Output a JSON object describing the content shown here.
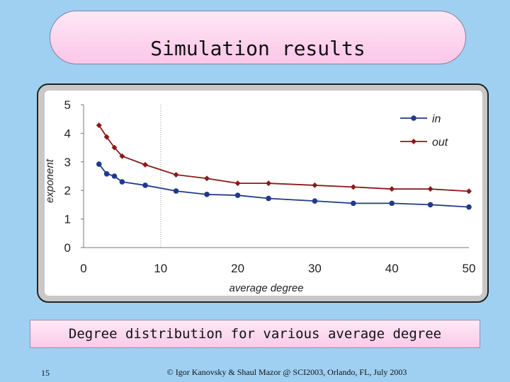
{
  "slide": {
    "title": "Simulation results",
    "caption": "Degree distribution for various average degree",
    "slide_number": "15",
    "footer": "© Igor Kanovsky & Shaul Mazor @ SCI2003, Orlando, FL, July 2003"
  },
  "chart_data": {
    "type": "line",
    "title": "",
    "xlabel": "average degree",
    "ylabel": "exponent",
    "xlim": [
      0,
      50
    ],
    "ylim": [
      0,
      5
    ],
    "xticks": [
      "0",
      "10",
      "20",
      "30",
      "40",
      "50"
    ],
    "yticks": [
      "0",
      "1",
      "2",
      "3",
      "4",
      "5"
    ],
    "grid": false,
    "legend": "top-right",
    "series": [
      {
        "name": "in",
        "color": "#1f3a8a",
        "marker": "circle",
        "x": [
          2,
          3,
          4,
          5,
          8,
          12,
          16,
          20,
          24,
          30,
          35,
          40,
          45,
          50
        ],
        "y": [
          2.92,
          2.58,
          2.5,
          2.3,
          2.18,
          1.98,
          1.86,
          1.83,
          1.72,
          1.63,
          1.55,
          1.55,
          1.5,
          1.42
        ]
      },
      {
        "name": "out",
        "color": "#8b1a1a",
        "marker": "diamond",
        "x": [
          2,
          3,
          4,
          5,
          8,
          12,
          16,
          20,
          24,
          30,
          35,
          40,
          45,
          50
        ],
        "y": [
          4.28,
          3.87,
          3.5,
          3.2,
          2.9,
          2.55,
          2.42,
          2.25,
          2.25,
          2.18,
          2.12,
          2.05,
          2.05,
          1.97
        ]
      }
    ]
  }
}
